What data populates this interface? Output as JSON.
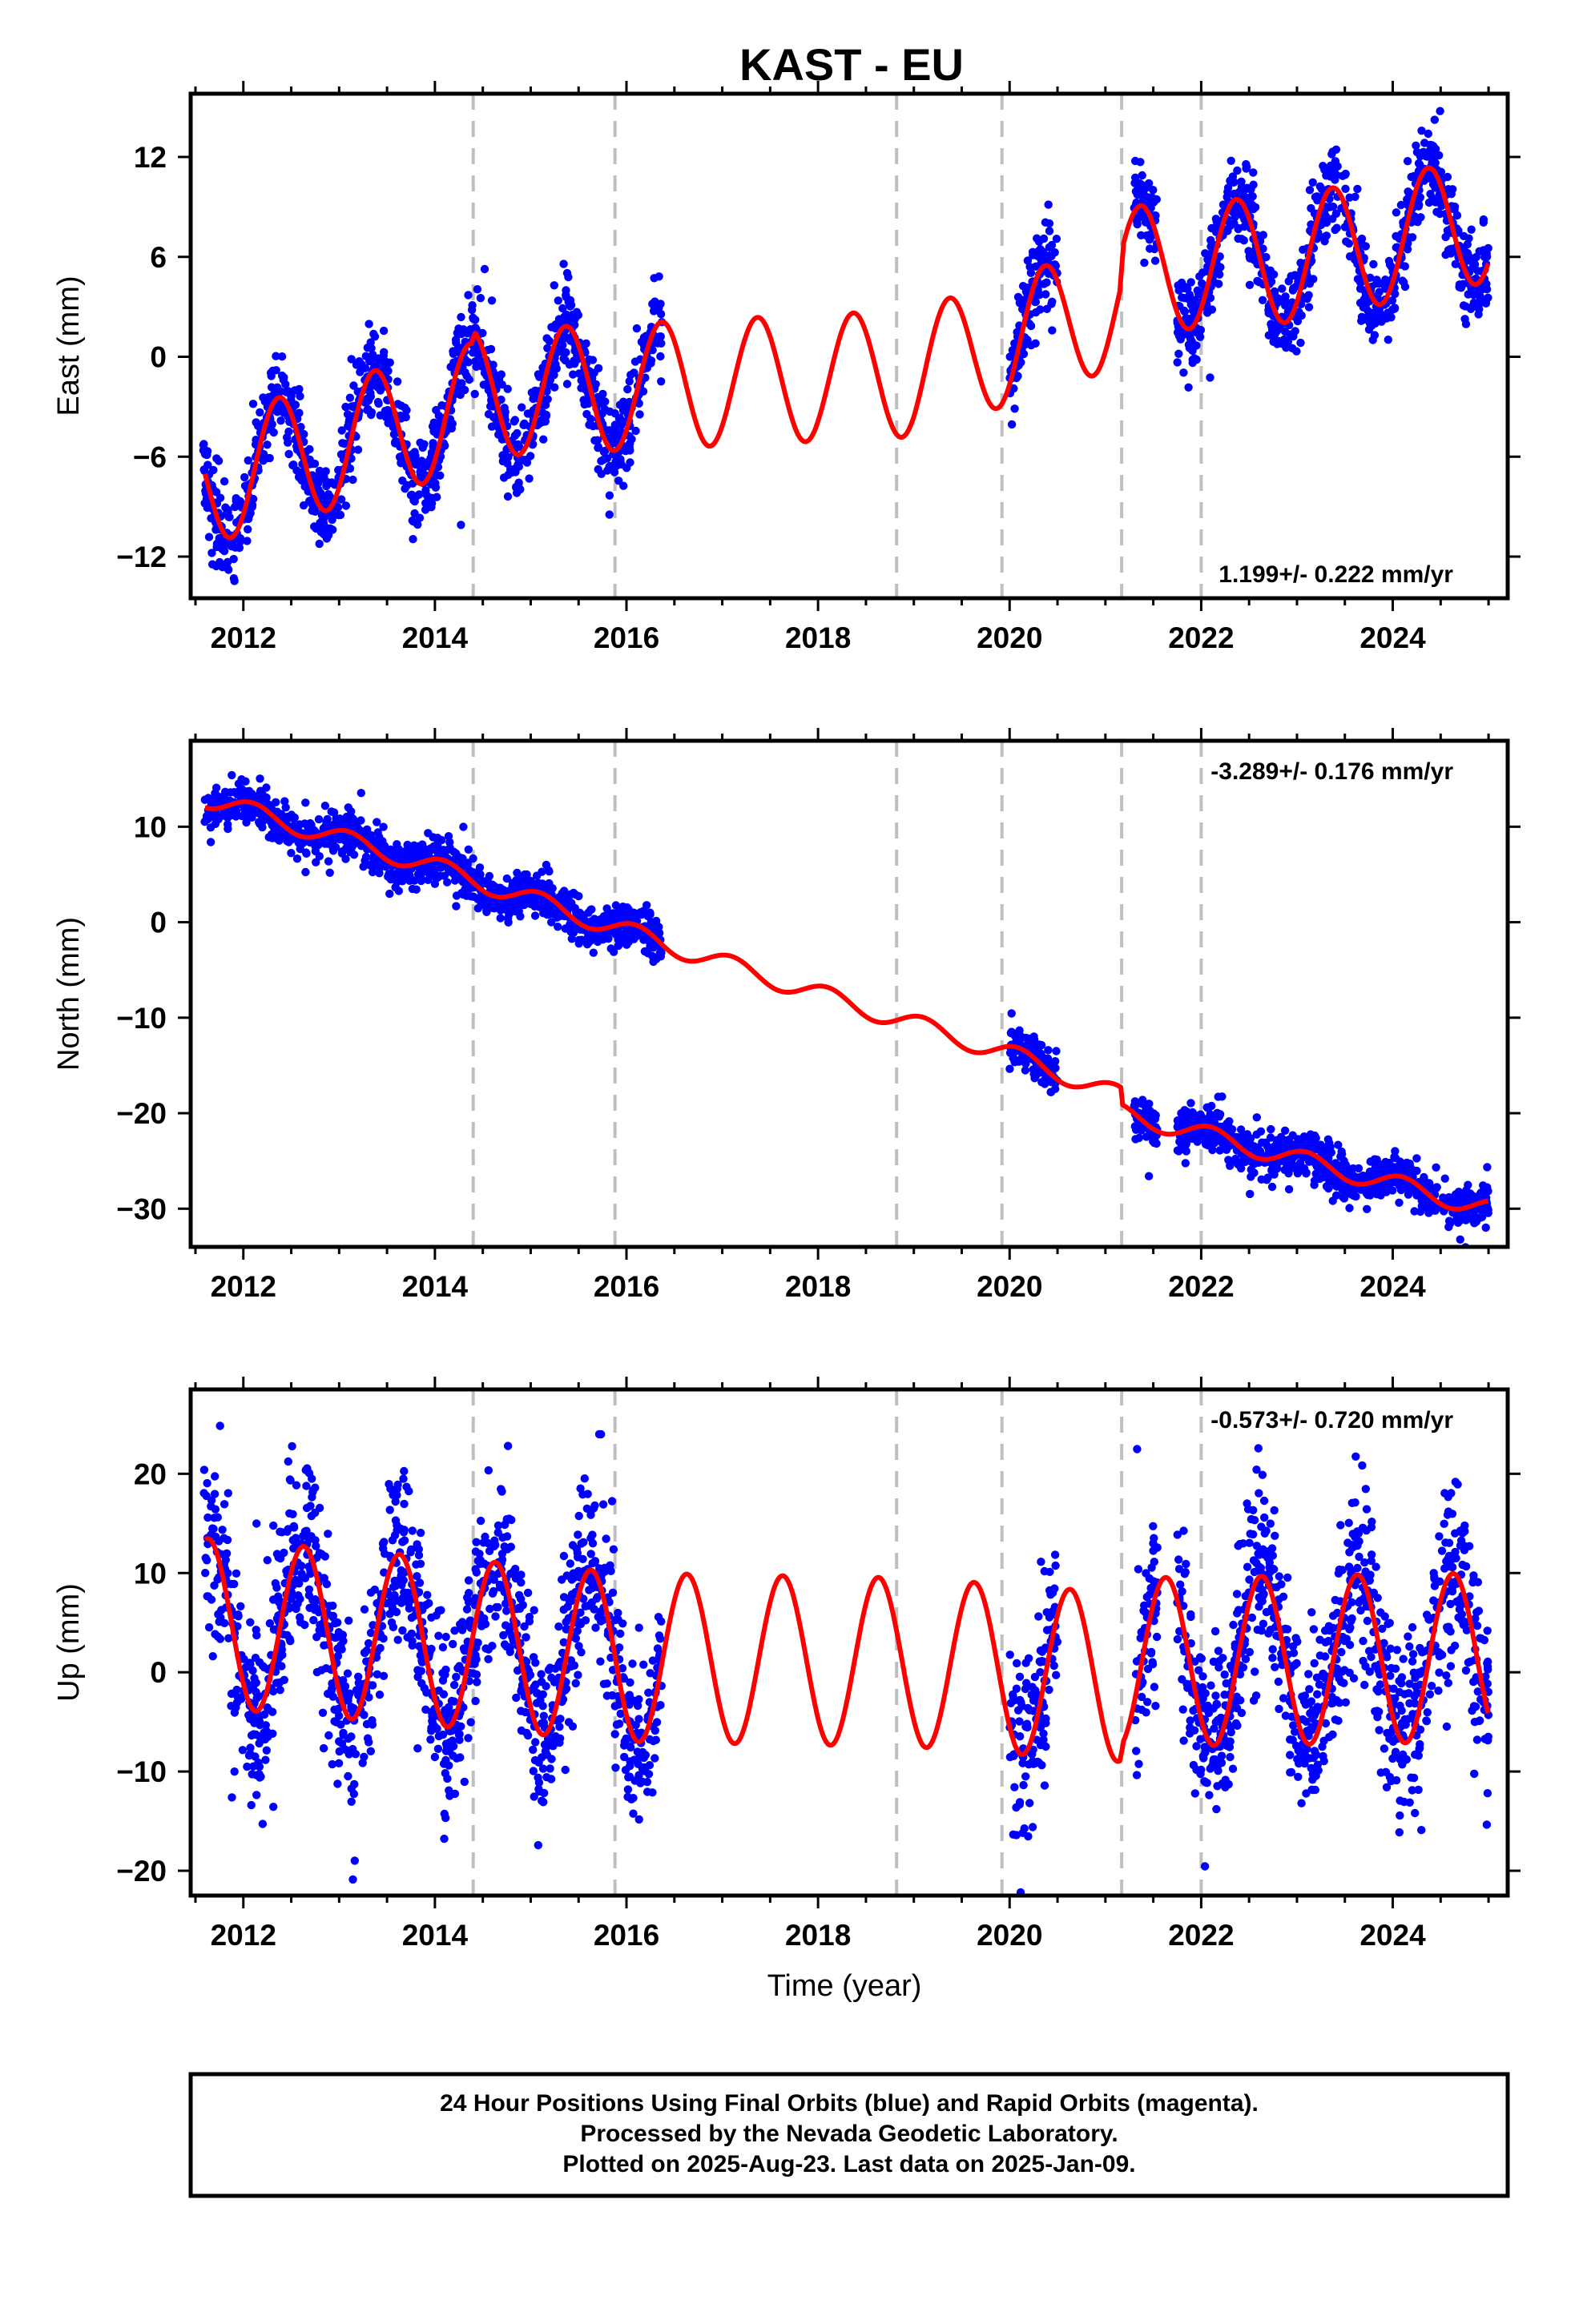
{
  "title": "KAST - EU",
  "colors": {
    "observations": "#0000ff",
    "model": "#ff0000",
    "steps": "#bfbfbf",
    "frame": "#000000"
  },
  "footer": {
    "line1": "24 Hour Positions Using Final Orbits (blue) and Rapid Orbits (magenta).",
    "line2": "Processed by the Nevada Geodetic Laboratory.",
    "line3": "Plotted on 2025-Aug-23. Last data on 2025-Jan-09."
  },
  "chart_data": [
    {
      "type": "scatter",
      "component": "east",
      "ylabel": "East (mm)",
      "xlabel": "",
      "rate_label": "1.199+/- 0.222 mm/yr",
      "xlim": [
        2011.45,
        2025.2
      ],
      "ylim": [
        -14.5,
        15.8
      ],
      "xticks": [
        2012,
        2014,
        2016,
        2018,
        2020,
        2022,
        2024
      ],
      "yticks": [
        12,
        6,
        0,
        -6,
        -12
      ],
      "steps": [
        2014.4,
        2015.88,
        2018.82,
        2019.92,
        2021.17,
        2022.0
      ],
      "data_spans": [
        [
          2011.58,
          2016.37
        ],
        [
          2020.0,
          2020.5
        ],
        [
          2021.3,
          2021.55
        ],
        [
          2021.75,
          2025.0
        ]
      ],
      "model": {
        "amplitude": 3.8,
        "peak_phase": 0.37,
        "anchor_points": [
          [
            2011.6,
            -7.5
          ],
          [
            2014.38,
            -3.0
          ],
          [
            2014.42,
            -2.2
          ],
          [
            2016.0,
            -1.8
          ],
          [
            2019.0,
            -1.0
          ],
          [
            2021.15,
            3.2
          ],
          [
            2021.19,
            5.2
          ],
          [
            2023.0,
            5.9
          ],
          [
            2025.0,
            8.3
          ]
        ]
      }
    },
    {
      "type": "scatter",
      "component": "north",
      "ylabel": "North (mm)",
      "xlabel": "",
      "rate_label": "-3.289+/- 0.176 mm/yr",
      "xlim": [
        2011.45,
        2025.2
      ],
      "ylim": [
        -34,
        19
      ],
      "xticks": [
        2012,
        2014,
        2016,
        2018,
        2020,
        2022,
        2024
      ],
      "yticks": [
        10,
        0,
        -10,
        -20,
        -30
      ],
      "steps": [
        2014.4,
        2015.88,
        2018.82,
        2019.92,
        2021.17,
        2022.0
      ],
      "data_spans": [
        [
          2011.58,
          2016.37
        ],
        [
          2020.0,
          2020.5
        ],
        [
          2021.3,
          2021.55
        ],
        [
          2021.75,
          2025.0
        ]
      ],
      "model": {
        "amplitude": 1.0,
        "peak_phase": 0.1,
        "anchor_points": [
          [
            2011.6,
            13.0
          ],
          [
            2014.0,
            5.8
          ],
          [
            2016.4,
            -2.3
          ],
          [
            2018.0,
            -7.5
          ],
          [
            2020.0,
            -13.8
          ],
          [
            2021.16,
            -18.2
          ],
          [
            2021.18,
            -20.0
          ],
          [
            2023.0,
            -24.8
          ],
          [
            2025.0,
            -30.0
          ]
        ]
      }
    },
    {
      "type": "scatter",
      "component": "up",
      "ylabel": "Up (mm)",
      "xlabel": "Time (year)",
      "rate_label": "-0.573+/- 0.720 mm/yr",
      "xlim": [
        2011.45,
        2025.2
      ],
      "ylim": [
        -22.5,
        28.5
      ],
      "xticks": [
        2012,
        2014,
        2016,
        2018,
        2020,
        2022,
        2024
      ],
      "yticks": [
        20,
        10,
        0,
        -10,
        -20
      ],
      "steps": [
        2014.4,
        2015.88,
        2018.82,
        2019.92,
        2021.17,
        2022.0
      ],
      "data_spans": [
        [
          2011.58,
          2016.37
        ],
        [
          2020.0,
          2020.5
        ],
        [
          2021.3,
          2021.55
        ],
        [
          2021.75,
          2025.0
        ]
      ],
      "model": {
        "amplitude": 8.5,
        "peak_phase": 0.63,
        "anchor_points": [
          [
            2011.6,
            5.0
          ],
          [
            2016.0,
            1.5
          ],
          [
            2019.0,
            1.0
          ],
          [
            2021.15,
            -0.5
          ],
          [
            2021.19,
            1.0
          ],
          [
            2025.0,
            1.5
          ]
        ]
      }
    }
  ]
}
